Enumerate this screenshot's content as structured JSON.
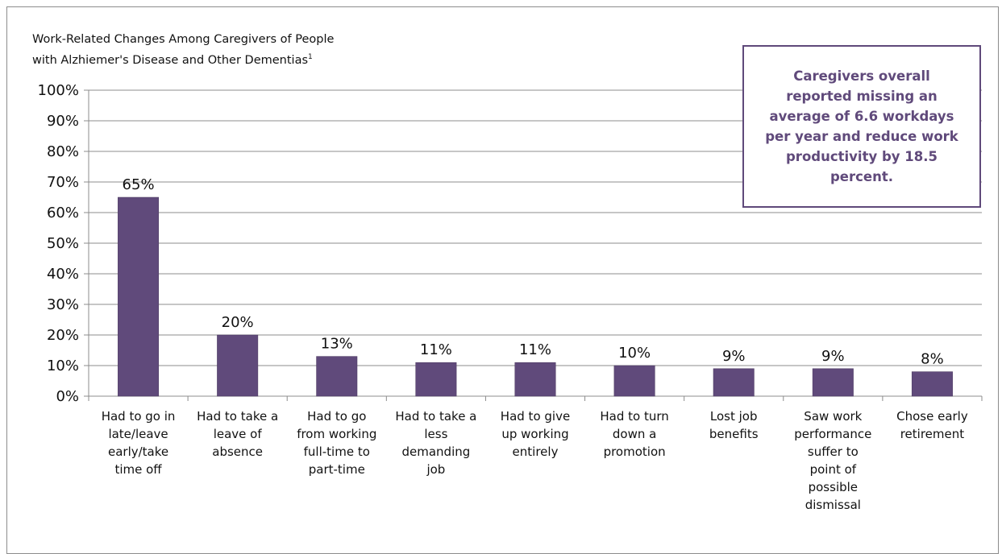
{
  "chart_data": {
    "type": "bar",
    "title_lines": [
      "Work-Related Changes Among Caregivers of People",
      "with Alzhiemer's Disease and Other Dementias"
    ],
    "title_superscript": "1",
    "categories": [
      "Had to go in late/leave early/take time off",
      "Had to take a leave of absence",
      "Had to go from working full-time to part-time",
      "Had to take a less demanding job",
      "Had to give up working entirely",
      "Had to turn down a promotion",
      "Lost job benefits",
      "Saw work performance suffer to point of possible dismissal",
      "Chose early retirement"
    ],
    "category_lines": [
      [
        "Had to go in",
        "late/leave",
        "early/take",
        "time off"
      ],
      [
        "Had to take a",
        "leave of",
        "absence"
      ],
      [
        "Had to go",
        "from working",
        "full-time to",
        "part-time"
      ],
      [
        "Had to take a",
        "less",
        "demanding",
        "job"
      ],
      [
        "Had to give",
        "up working",
        "entirely"
      ],
      [
        "Had to turn",
        "down a",
        "promotion"
      ],
      [
        "Lost job",
        "benefits"
      ],
      [
        "Saw work",
        "performance",
        "suffer to",
        "point of",
        "possible",
        "dismissal"
      ],
      [
        "Chose early",
        "retirement"
      ]
    ],
    "values": [
      65,
      20,
      13,
      11,
      11,
      10,
      9,
      9,
      8
    ],
    "data_labels": [
      "65%",
      "20%",
      "13%",
      "11%",
      "11%",
      "10%",
      "9%",
      "9%",
      "8%"
    ],
    "ylim": [
      0,
      100
    ],
    "yticks": [
      "0%",
      "10%",
      "20%",
      "30%",
      "40%",
      "50%",
      "60%",
      "70%",
      "80%",
      "90%",
      "100%"
    ],
    "grid": true,
    "bar_color": "#604a7b",
    "annotation": "Caregivers overall reported missing an average of 6.6 workdays per year and reduce work productivity by 18.5 percent."
  }
}
